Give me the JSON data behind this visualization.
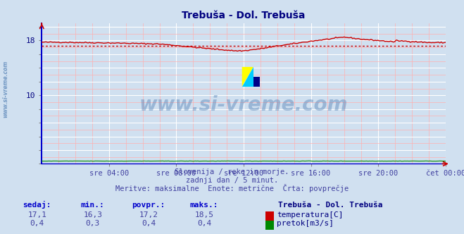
{
  "title": "Trebuša - Dol. Trebuša",
  "title_color": "#000080",
  "bg_color": "#d0e0f0",
  "plot_bg_color": "#d0e0f0",
  "grid_color_major": "#ffffff",
  "grid_color_minor": "#ffb0b0",
  "x_tick_labels": [
    "sre 04:00",
    "sre 08:00",
    "sre 12:00",
    "sre 16:00",
    "sre 20:00",
    "čet 00:00"
  ],
  "x_tick_positions": [
    4,
    8,
    12,
    16,
    20,
    24
  ],
  "y_tick_labels": [
    "",
    "",
    "",
    "",
    "",
    "10",
    "",
    "",
    "",
    "18",
    ""
  ],
  "y_tick_positions": [
    0,
    2,
    4,
    6,
    8,
    10,
    12,
    14,
    16,
    18,
    20
  ],
  "ylim": [
    0,
    20.5
  ],
  "xlim": [
    0,
    24
  ],
  "temp_color": "#cc0000",
  "flow_color": "#008800",
  "avg_color": "#cc0000",
  "avg_value": 17.2,
  "subtitle1": "Slovenija / reke in morje.",
  "subtitle2": "zadnji dan / 5 minut.",
  "subtitle3": "Meritve: maksimalne  Enote: metrične  Črta: povprečje",
  "subtitle_color": "#4040a0",
  "watermark": "www.si-vreme.com",
  "watermark_color": "#4878b0",
  "watermark_alpha": 0.4,
  "ylabel_text": "www.si-vreme.com",
  "ylabel_color": "#4878b0",
  "table_headers": [
    "sedaj:",
    "min.:",
    "povpr.:",
    "maks.:"
  ],
  "table_header_color": "#0000cc",
  "table_values_temp": [
    "17,1",
    "16,3",
    "17,2",
    "18,5"
  ],
  "table_values_flow": [
    "0,4",
    "0,3",
    "0,4",
    "0,4"
  ],
  "legend_station": "Trebuša - Dol. Trebuša",
  "legend_temp_label": "temperatura[C]",
  "legend_flow_label": "pretok[m3/s]",
  "spine_left_color": "#0000cc",
  "spine_bottom_color": "#0000cc"
}
